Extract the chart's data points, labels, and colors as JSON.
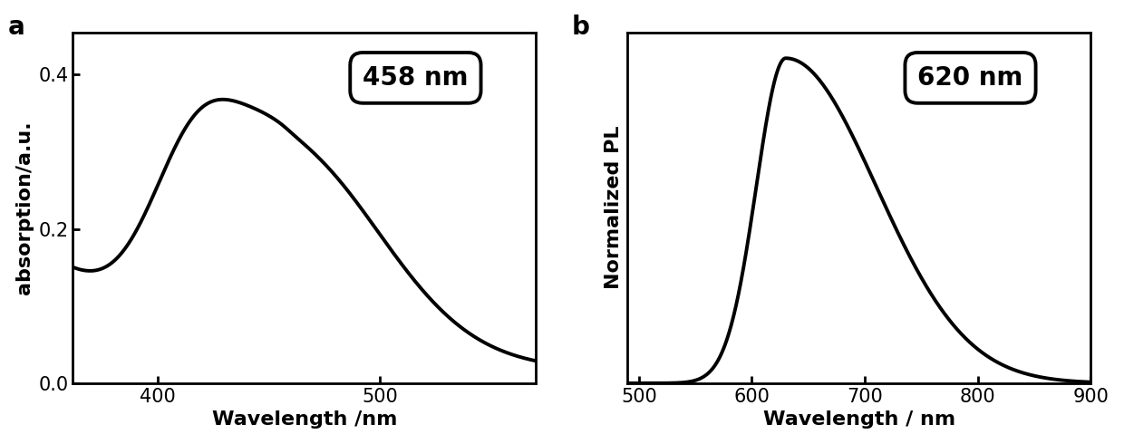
{
  "panel_a": {
    "label": "a",
    "xlabel": "Wavelength /nm",
    "ylabel": "absorption/a.u.",
    "annotation": "458 nm",
    "xlim": [
      362,
      570
    ],
    "ylim": [
      0.0,
      0.455
    ],
    "xticks": [
      400,
      500
    ],
    "yticks": [
      0.0,
      0.2,
      0.4
    ],
    "curve_color": "#000000",
    "linewidth": 2.8
  },
  "panel_b": {
    "label": "b",
    "xlabel": "Wavelength / nm",
    "ylabel": "Normalized PL",
    "annotation": "620 nm",
    "xlim": [
      490,
      900
    ],
    "ylim": [
      0.0,
      1.08
    ],
    "xticks": [
      500,
      600,
      700,
      800,
      900
    ],
    "yticks": [],
    "curve_color": "#000000",
    "linewidth": 2.8
  },
  "figure": {
    "bgcolor": "#ffffff",
    "tick_fontsize": 15,
    "axis_label_fontsize": 16,
    "annotation_fontsize": 20,
    "panel_label_fontsize": 20,
    "spine_linewidth": 2.0
  }
}
